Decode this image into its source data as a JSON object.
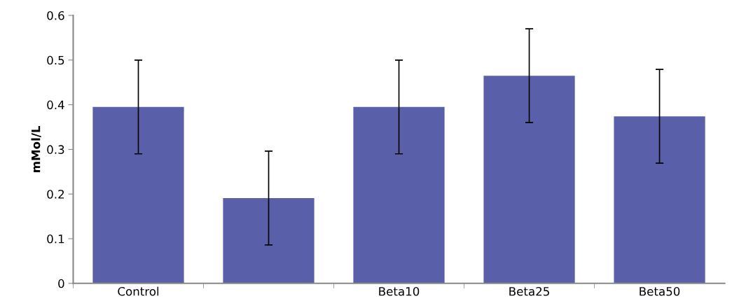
{
  "chart_data": {
    "type": "bar",
    "ylabel": "mMol/L",
    "categories": [
      "Control",
      null,
      "Beta10",
      "Beta25",
      "Beta50"
    ],
    "values": [
      0.395,
      0.191,
      0.395,
      0.465,
      0.374
    ],
    "errors": [
      0.105,
      0.105,
      0.105,
      0.105,
      0.105
    ],
    "color": "#5a5fa9",
    "ylim": [
      0,
      0.6
    ],
    "yticks": [
      0,
      0.1,
      0.2,
      0.3,
      0.4,
      0.5,
      0.6
    ],
    "grid": false,
    "legend": false
  }
}
